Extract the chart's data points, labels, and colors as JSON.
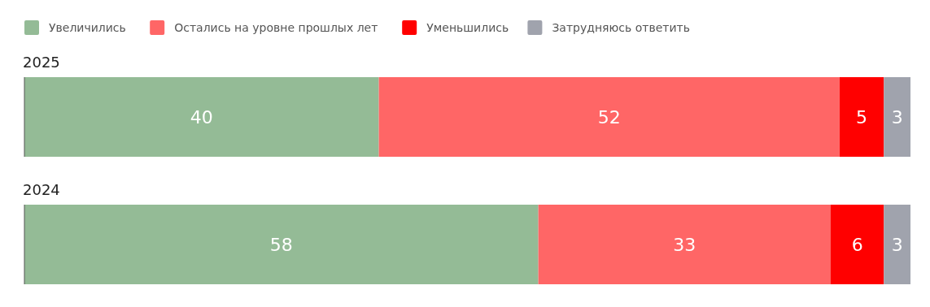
{
  "chart_data": {
    "type": "bar",
    "orientation": "horizontal",
    "stacked": true,
    "categories": [
      "2025",
      "2024"
    ],
    "xlim": [
      0,
      100
    ],
    "data_labels": true,
    "legend": "top left",
    "series": [
      {
        "name": "Увеличились",
        "color": "#94bb96",
        "values": [
          40,
          58
        ]
      },
      {
        "name": "Остались на уровне прошлых лет",
        "color": "#ff6666",
        "values": [
          52,
          33
        ]
      },
      {
        "name": "Уменьшились",
        "color": "#ff0000",
        "values": [
          5,
          6
        ]
      },
      {
        "name": "Затрудняюсь ответить",
        "color": "#a0a3ad",
        "values": [
          3,
          3
        ]
      }
    ]
  }
}
